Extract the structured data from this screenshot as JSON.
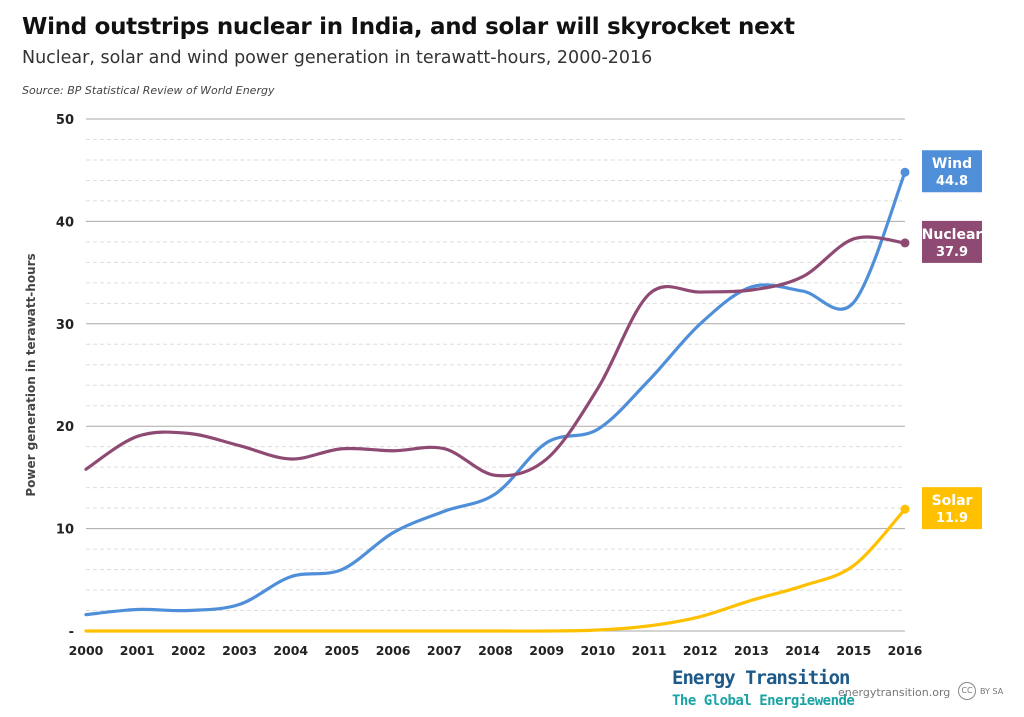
{
  "header": {
    "title": "Wind outstrips nuclear in India, and solar will skyrocket next",
    "subtitle": "Nuclear, solar and wind power generation in terawatt-hours, 2000-2016",
    "source": "Source: BP Statistical Review of World Energy"
  },
  "footer": {
    "logo_line1": "Energy Transition",
    "logo_line2": "The Global Energiewende",
    "site": "energytransition.org",
    "license_icon": "CC",
    "license": "BY SA"
  },
  "chart_data": {
    "type": "line",
    "title": "Wind outstrips nuclear in India, and solar will skyrocket next",
    "ylabel": "Power generation in terawatt-hours",
    "xlabel": "",
    "ylim": [
      0,
      50
    ],
    "grid": true,
    "yticks": [
      "-",
      "10",
      "20",
      "30",
      "40",
      "50"
    ],
    "x": [
      2000,
      2001,
      2002,
      2003,
      2004,
      2005,
      2006,
      2007,
      2008,
      2009,
      2010,
      2011,
      2012,
      2013,
      2014,
      2015,
      2016
    ],
    "series": [
      {
        "name": "Wind",
        "label": "44.8",
        "color": "#4f8fd9",
        "values": [
          1.6,
          2.1,
          2.0,
          2.6,
          5.3,
          6.0,
          9.6,
          11.7,
          13.4,
          18.4,
          19.7,
          24.5,
          30.0,
          33.6,
          33.2,
          32.1,
          44.8
        ]
      },
      {
        "name": "Nuclear",
        "label": "37.9",
        "color": "#8e4a72",
        "values": [
          15.8,
          19.0,
          19.3,
          18.1,
          16.8,
          17.8,
          17.6,
          17.8,
          15.2,
          16.8,
          23.7,
          32.9,
          33.1,
          33.3,
          34.6,
          38.3,
          37.9
        ]
      },
      {
        "name": "Solar",
        "label": "11.9",
        "color": "#ffc000",
        "values": [
          0,
          0,
          0,
          0,
          0,
          0,
          0,
          0,
          0,
          0,
          0.1,
          0.5,
          1.4,
          3.0,
          4.4,
          6.4,
          11.9
        ]
      }
    ]
  }
}
